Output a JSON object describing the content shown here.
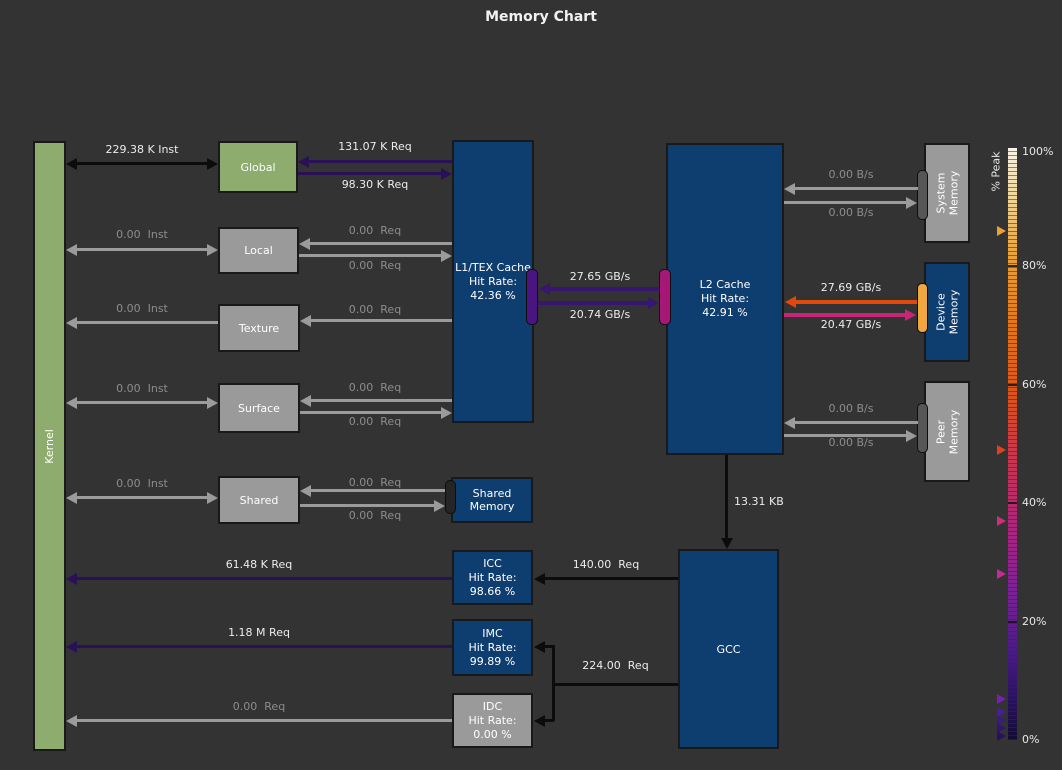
{
  "title": "Memory Chart",
  "nodes": {
    "kernel": "Kernel",
    "global": "Global",
    "local": "Local",
    "texture": "Texture",
    "surface": "Surface",
    "shared": "Shared",
    "l1": {
      "name": "L1/TEX Cache",
      "hit_label": "Hit Rate:",
      "hit_value": "42.36 %"
    },
    "shared_memory": "Shared Memory",
    "l2": {
      "name": "L2 Cache",
      "hit_label": "Hit Rate:",
      "hit_value": "42.91 %"
    },
    "icc": {
      "name": "ICC",
      "hit_label": "Hit Rate:",
      "hit_value": "98.66 %"
    },
    "imc": {
      "name": "IMC",
      "hit_label": "Hit Rate:",
      "hit_value": "99.89 %"
    },
    "idc": {
      "name": "IDC",
      "hit_label": "Hit Rate:",
      "hit_value": "0.00 %"
    },
    "gcc": "GCC",
    "system_memory": [
      "System",
      "Memory"
    ],
    "device_memory": [
      "Device",
      "Memory"
    ],
    "peer_memory": [
      "Peer",
      "Memory"
    ]
  },
  "flows": {
    "kernel_global": "229.38 K Inst",
    "kernel_local": "0.00  Inst",
    "kernel_texture": "0.00  Inst",
    "kernel_surface": "0.00  Inst",
    "kernel_shared": "0.00  Inst",
    "global_l1_in": "131.07 K Req",
    "global_l1_out": "98.30 K Req",
    "local_l1_in": "0.00  Req",
    "local_l1_out": "0.00  Req",
    "texture_l1": "0.00  Req",
    "surface_l1_in": "0.00  Req",
    "surface_l1_out": "0.00  Req",
    "shared_in": "0.00  Req",
    "shared_out": "0.00  Req",
    "l1_l2_read": "27.65 GB/s",
    "l1_l2_write": "20.74 GB/s",
    "l2_system_read": "0.00 B/s",
    "l2_system_write": "0.00 B/s",
    "l2_device_read": "27.69 GB/s",
    "l2_device_write": "20.47 GB/s",
    "l2_peer_read": "0.00 B/s",
    "l2_peer_write": "0.00 B/s",
    "l2_gcc": "13.31 KB",
    "gcc_icc": "140.00  Req",
    "gcc_imc_idc": "224.00  Req",
    "icc_kernel": "61.48 K Req",
    "imc_kernel": "1.18 M Req",
    "idc_kernel": "0.00  Req"
  },
  "colorbar": {
    "label": "% Peak",
    "ticks": [
      "100%",
      "80%",
      "60%",
      "40%",
      "20%",
      "0%"
    ],
    "markers": [
      {
        "pct": 86,
        "color": "#f0a030"
      },
      {
        "pct": 49,
        "color": "#e0431c"
      },
      {
        "pct": 37,
        "color": "#d02d7c"
      },
      {
        "pct": 28,
        "color": "#c32a96"
      },
      {
        "pct": 7,
        "color": "#7a1fb4"
      },
      {
        "pct": 4.7,
        "color": "#44209a"
      },
      {
        "pct": 3.4,
        "color": "#3a1a85"
      },
      {
        "pct": 2,
        "color": "#311570"
      },
      {
        "pct": 0.7,
        "color": "#28115c"
      }
    ]
  },
  "palette": {
    "background": "#333333",
    "kernel_green": "#8dac6e",
    "node_gray": "#9a9a9a",
    "node_blue": "#0e3d6f",
    "flow_black": "#0c0c0c",
    "flow_gray": "#9b9b9b",
    "flow_indigo": "#2a1157",
    "flow_indigo_bright": "#38156e",
    "flow_device_read": "#e2470d",
    "flow_device_write": "#c92577",
    "port_purple": "#4a1580",
    "port_magenta": "#a61777",
    "port_amber": "#f0a83e",
    "port_gray": "#565656",
    "port_dark": "#252525"
  }
}
